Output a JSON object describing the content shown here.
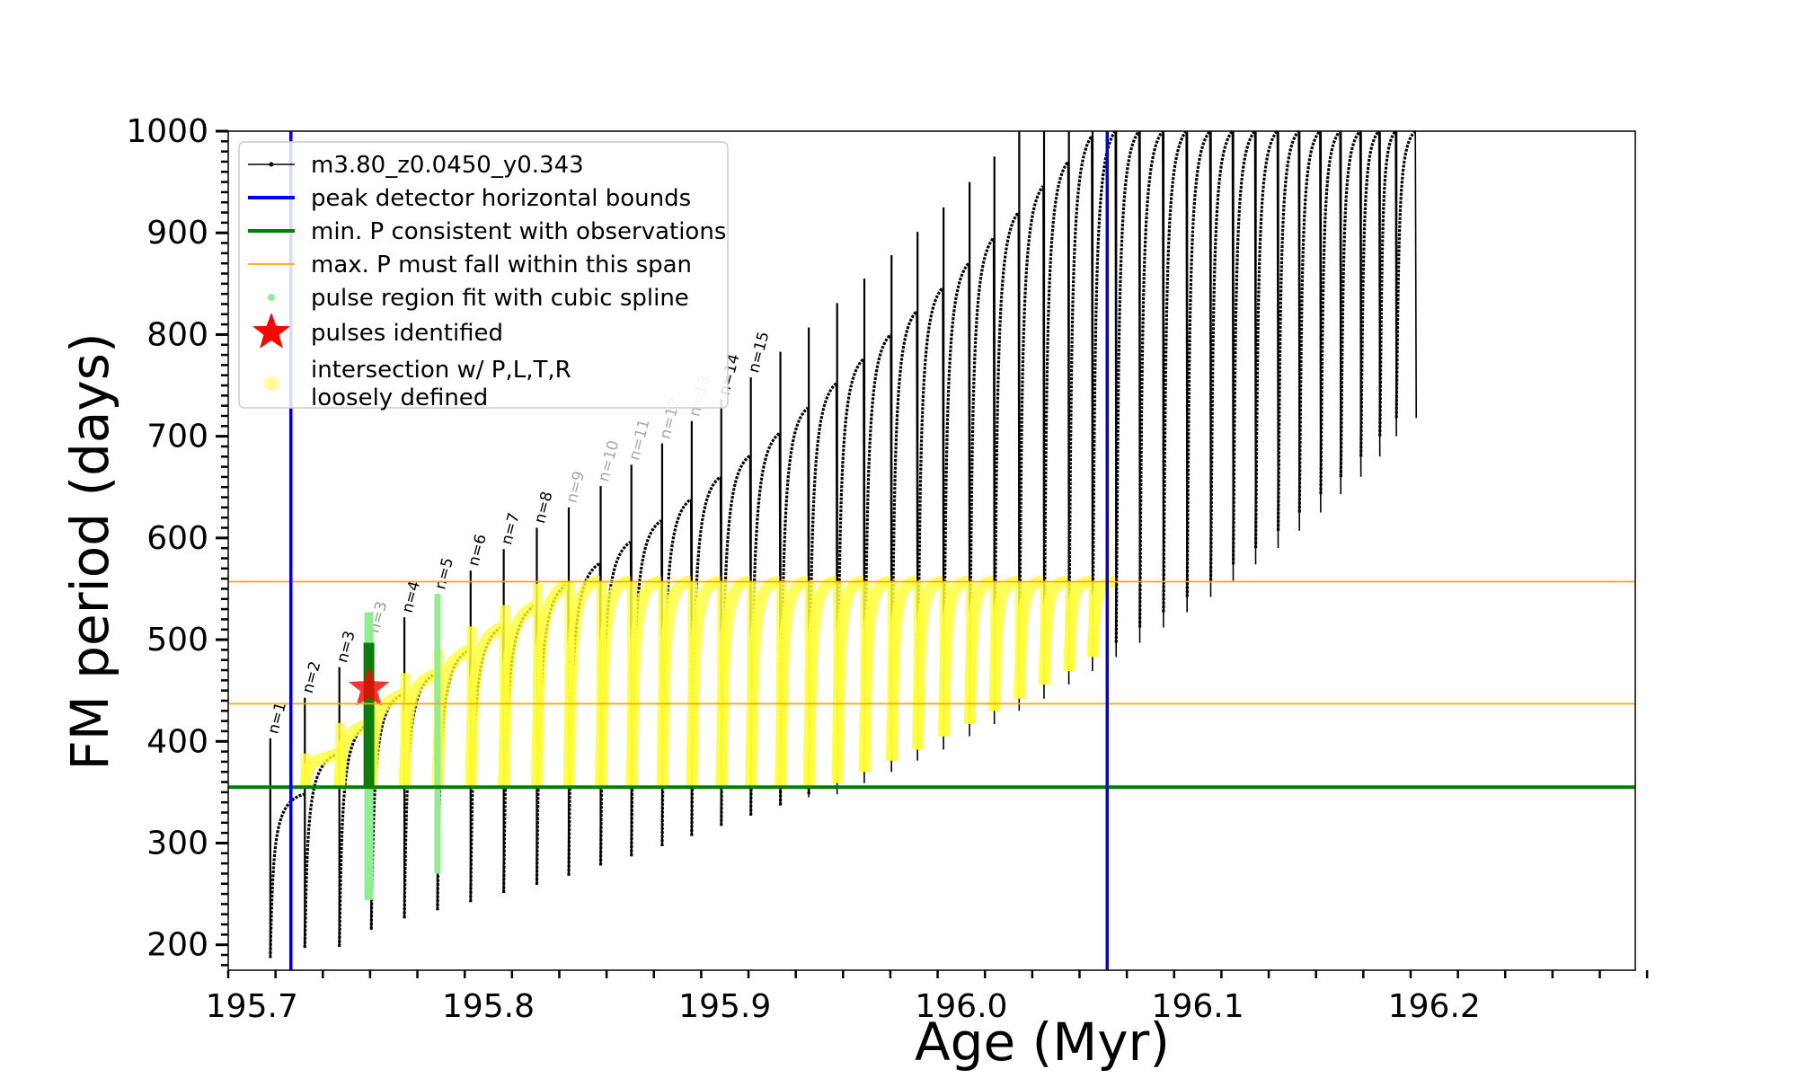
{
  "chart_data": {
    "type": "scatter",
    "title": "",
    "xlabel": "Age (Myr)",
    "ylabel": "FM period (days)",
    "xlim": [
      195.69,
      196.285
    ],
    "ylim": [
      175,
      1000
    ],
    "xticks": [
      "195.7",
      "195.8",
      "195.9",
      "196.0",
      "196.1",
      "196.2"
    ],
    "yticks": [
      "200",
      "300",
      "400",
      "500",
      "600",
      "700",
      "800",
      "900",
      "1000"
    ],
    "grid": false,
    "legend_position": "top-left",
    "legend": [
      {
        "label": "m3.80_z0.0450_y0.343",
        "kind": "line-marker",
        "color": "#000000"
      },
      {
        "label": "peak detector horizontal bounds",
        "kind": "line",
        "color": "#0000ee"
      },
      {
        "label": "min. P consistent with observations",
        "kind": "line",
        "color": "#008000"
      },
      {
        "label": "max. P must fall within this span",
        "kind": "thin-line",
        "color": "#ffa500"
      },
      {
        "label": "pulse region fit with cubic spline",
        "kind": "dot",
        "color": "#90ee90"
      },
      {
        "label": "pulses identified",
        "kind": "star",
        "color": "#ff0000"
      },
      {
        "label": "intersection w/ P,L,T,R",
        "label2": "loosely defined",
        "kind": "big-dot",
        "color": "#ffff99"
      }
    ],
    "reference_lines": {
      "peak_detector_bounds_age": [
        195.7165,
        196.0617
      ],
      "min_period": 355,
      "max_period_span": [
        437,
        557
      ]
    },
    "pulses": [
      {
        "label": "n=1",
        "age": 195.7078,
        "min_p": 187,
        "peak_p": 348,
        "label_color": "#000000"
      },
      {
        "label": "n=2",
        "age": 195.7224,
        "min_p": 197,
        "peak_p": 388,
        "label_color": "#000000"
      },
      {
        "label": "n=3",
        "age": 195.737,
        "min_p": 198,
        "peak_p": 418,
        "label_color": "#000000"
      },
      {
        "label": "n=3",
        "age": 195.7505,
        "min_p": 215,
        "peak_p": 447,
        "label_color": "#999999"
      },
      {
        "label": "n=4",
        "age": 195.7645,
        "min_p": 226,
        "peak_p": 467,
        "label_color": "#000000"
      },
      {
        "label": "n=5",
        "age": 195.7785,
        "min_p": 234,
        "peak_p": 490,
        "label_color": "#000000"
      },
      {
        "label": "n=6",
        "age": 195.7925,
        "min_p": 242,
        "peak_p": 513,
        "label_color": "#000000"
      },
      {
        "label": "n=7",
        "age": 195.8065,
        "min_p": 251,
        "peak_p": 534,
        "label_color": "#000000"
      },
      {
        "label": "n=8",
        "age": 195.8205,
        "min_p": 259,
        "peak_p": 555,
        "label_color": "#000000"
      },
      {
        "label": "n=9",
        "age": 195.834,
        "min_p": 268,
        "peak_p": 575,
        "label_color": "#aaaaaa"
      },
      {
        "label": "n=10",
        "age": 195.8475,
        "min_p": 278,
        "peak_p": 596,
        "label_color": "#aaaaaa"
      },
      {
        "label": "n=11",
        "age": 195.8605,
        "min_p": 287,
        "peak_p": 617,
        "label_color": "#aaaaaa"
      },
      {
        "label": "n=12",
        "age": 195.8735,
        "min_p": 297,
        "peak_p": 638,
        "label_color": "#aaaaaa"
      },
      {
        "label": "n=13",
        "age": 195.886,
        "min_p": 307,
        "peak_p": 660,
        "label_color": "#aaaaaa"
      },
      {
        "label": "n=14",
        "age": 195.8985,
        "min_p": 317,
        "peak_p": 681,
        "label_color": "#000000"
      },
      {
        "label": "n=15",
        "age": 195.911,
        "min_p": 327,
        "peak_p": 703,
        "label_color": "#000000"
      },
      {
        "label": "",
        "age": 195.9235,
        "min_p": 337,
        "peak_p": 728,
        "label_color": "#000000"
      },
      {
        "label": "",
        "age": 195.9355,
        "min_p": 348,
        "peak_p": 752,
        "label_color": "#000000"
      },
      {
        "label": "",
        "age": 195.9475,
        "min_p": 359,
        "peak_p": 776,
        "label_color": "#000000"
      },
      {
        "label": "",
        "age": 195.959,
        "min_p": 370,
        "peak_p": 800,
        "label_color": "#000000"
      },
      {
        "label": "",
        "age": 195.9705,
        "min_p": 381,
        "peak_p": 823,
        "label_color": "#000000"
      },
      {
        "label": "",
        "age": 195.9815,
        "min_p": 392,
        "peak_p": 846,
        "label_color": "#000000"
      },
      {
        "label": "",
        "age": 195.9925,
        "min_p": 405,
        "peak_p": 870,
        "label_color": "#000000"
      },
      {
        "label": "",
        "age": 196.0035,
        "min_p": 417,
        "peak_p": 895,
        "label_color": "#000000"
      },
      {
        "label": "",
        "age": 196.014,
        "min_p": 430,
        "peak_p": 920,
        "label_color": "#000000"
      },
      {
        "label": "",
        "age": 196.0245,
        "min_p": 442,
        "peak_p": 946,
        "label_color": "#000000"
      },
      {
        "label": "",
        "age": 196.035,
        "min_p": 456,
        "peak_p": 970,
        "label_color": "#000000"
      },
      {
        "label": "",
        "age": 196.0455,
        "min_p": 469,
        "peak_p": 995,
        "label_color": "#000000"
      },
      {
        "label": "",
        "age": 196.0555,
        "min_p": 483,
        "peak_p": 1000,
        "label_color": "#000000"
      },
      {
        "label": "",
        "age": 196.0655,
        "min_p": 497,
        "peak_p": 1000,
        "label_color": "#000000"
      },
      {
        "label": "",
        "age": 196.0755,
        "min_p": 512,
        "peak_p": 1000,
        "label_color": "#000000"
      },
      {
        "label": "",
        "age": 196.0855,
        "min_p": 527,
        "peak_p": 1000,
        "label_color": "#000000"
      },
      {
        "label": "",
        "age": 196.0955,
        "min_p": 542,
        "peak_p": 1000,
        "label_color": "#000000"
      },
      {
        "label": "",
        "age": 196.1055,
        "min_p": 558,
        "peak_p": 1000,
        "label_color": "#000000"
      },
      {
        "label": "",
        "age": 196.115,
        "min_p": 574,
        "peak_p": 1000,
        "label_color": "#000000"
      },
      {
        "label": "",
        "age": 196.1245,
        "min_p": 590,
        "peak_p": 1000,
        "label_color": "#000000"
      },
      {
        "label": "",
        "age": 196.134,
        "min_p": 607,
        "peak_p": 1000,
        "label_color": "#000000"
      },
      {
        "label": "",
        "age": 196.143,
        "min_p": 625,
        "peak_p": 1000,
        "label_color": "#000000"
      },
      {
        "label": "",
        "age": 196.152,
        "min_p": 643,
        "peak_p": 1000,
        "label_color": "#000000"
      },
      {
        "label": "",
        "age": 196.1605,
        "min_p": 660,
        "peak_p": 1000,
        "label_color": "#000000"
      },
      {
        "label": "",
        "age": 196.169,
        "min_p": 680,
        "peak_p": 1000,
        "label_color": "#000000"
      },
      {
        "label": "",
        "age": 196.177,
        "min_p": 700,
        "peak_p": 1000,
        "label_color": "#000000"
      },
      {
        "label": "",
        "age": 196.184,
        "min_p": 718,
        "peak_p": 1000,
        "label_color": "#000000"
      }
    ],
    "identified_pulse": {
      "age": 195.7495,
      "period": 452
    },
    "identified_pulse_vertical": {
      "age": 195.7495,
      "p_low": 244,
      "p_high": 527
    }
  }
}
